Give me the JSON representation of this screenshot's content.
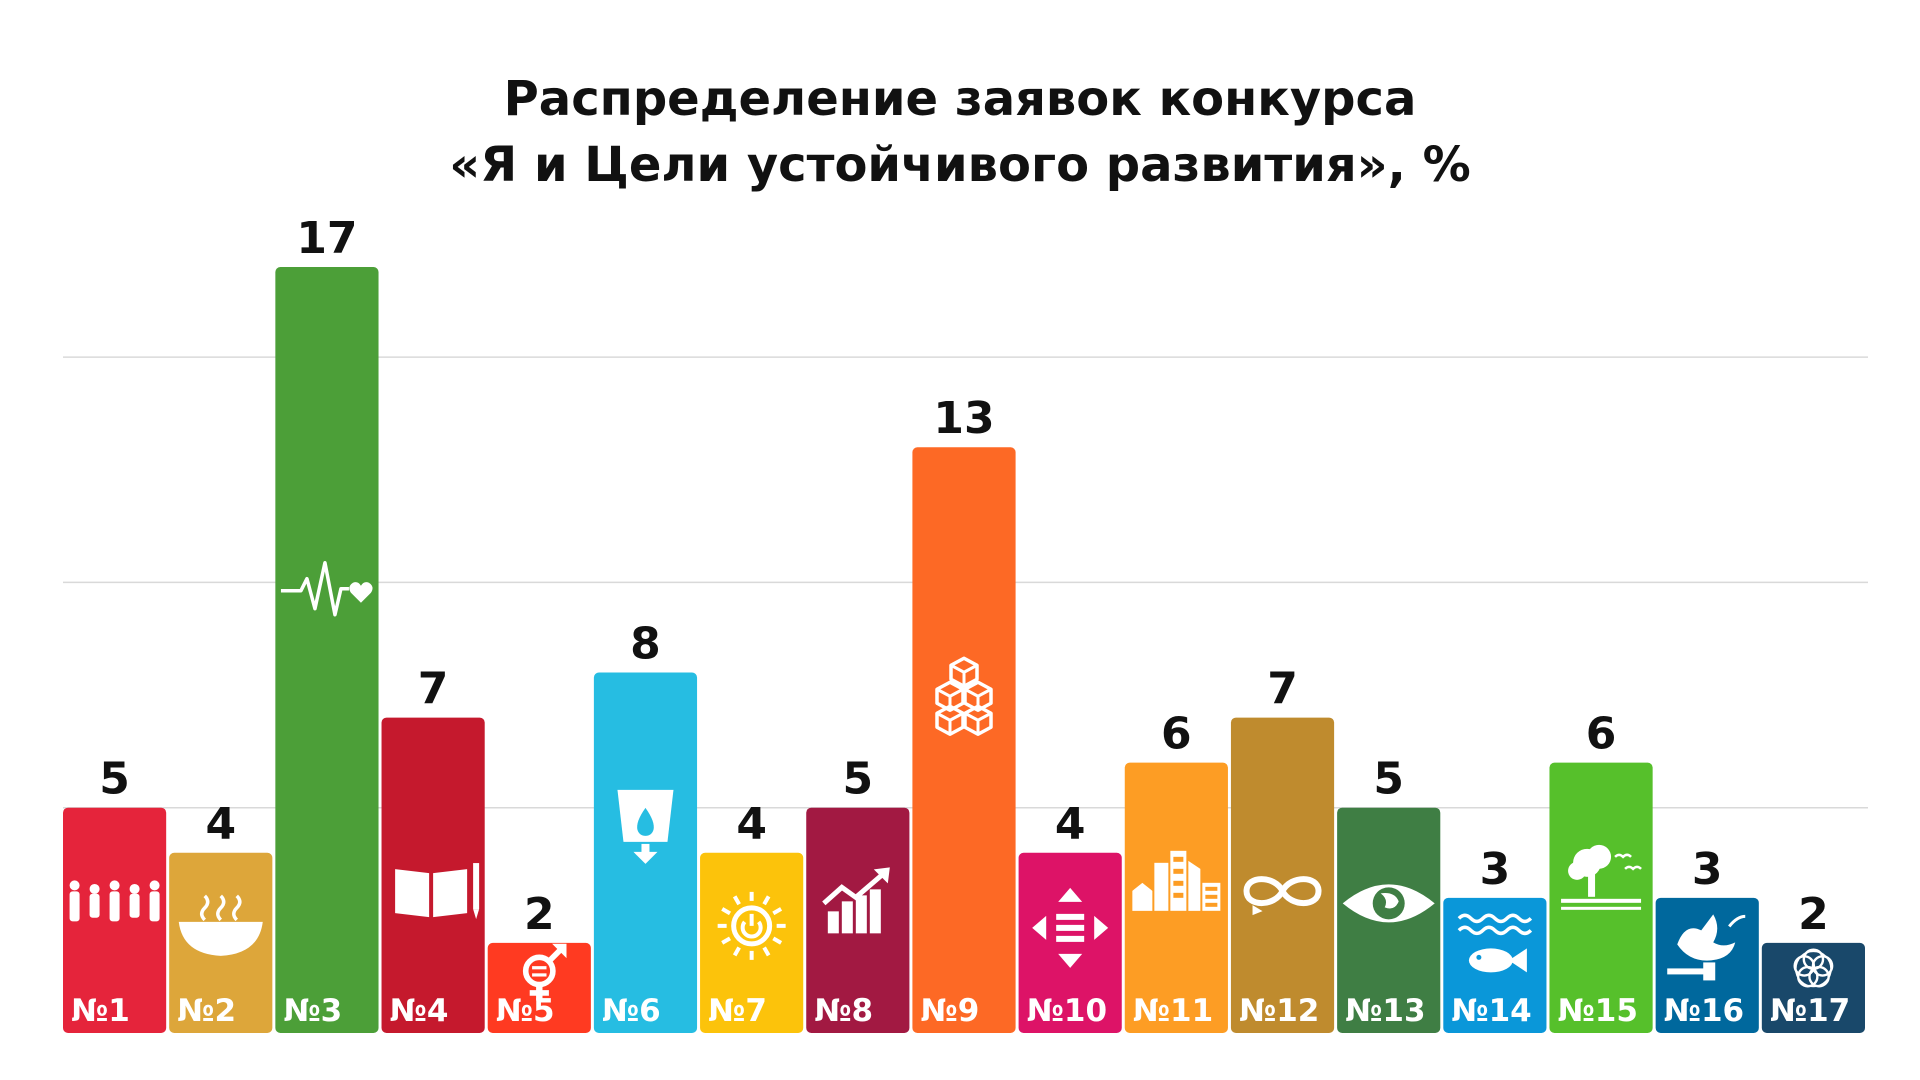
{
  "chart_data": {
    "type": "bar",
    "title": "Распределение заявок конкурса «Я и Цели устойчивого развития», %",
    "title_lines": [
      "Распределение заявок конкурса",
      "«Я и Цели устойчивого развития», %"
    ],
    "categories": [
      "№1",
      "№2",
      "№3",
      "№4",
      "№5",
      "№6",
      "№7",
      "№8",
      "№9",
      "№10",
      "№11",
      "№12",
      "№13",
      "№14",
      "№15",
      "№16",
      "№17"
    ],
    "values": [
      5,
      4,
      17,
      7,
      2,
      8,
      4,
      5,
      13,
      4,
      6,
      7,
      5,
      3,
      6,
      3,
      2
    ],
    "value_labels": [
      "5",
      "4",
      "17",
      "7",
      "2",
      "8",
      "4",
      "5",
      "13",
      "4",
      "6",
      "7",
      "5",
      "3",
      "6",
      "3",
      "2"
    ],
    "colors": [
      "#E5243B",
      "#DDA63A",
      "#4C9F38",
      "#C5192D",
      "#FF3A21",
      "#26BDE2",
      "#FCC30B",
      "#A21942",
      "#FD6925",
      "#DD1367",
      "#FD9D24",
      "#BF8B2E",
      "#3F7E44",
      "#0A97D9",
      "#56C02B",
      "#00689D",
      "#19486A"
    ],
    "icons": [
      "people-icon",
      "bowl-icon",
      "heartbeat-icon",
      "book-icon",
      "gender-equality-icon",
      "water-icon",
      "sun-power-icon",
      "growth-chart-icon",
      "cubes-icon",
      "equality-arrows-icon",
      "city-icon",
      "infinity-icon",
      "eye-globe-icon",
      "fish-icon",
      "tree-icon",
      "dove-gavel-icon",
      "flower-icon"
    ],
    "ylim": [
      0,
      17
    ],
    "grid": true,
    "legend": "none",
    "xlabel": "",
    "ylabel": ""
  }
}
